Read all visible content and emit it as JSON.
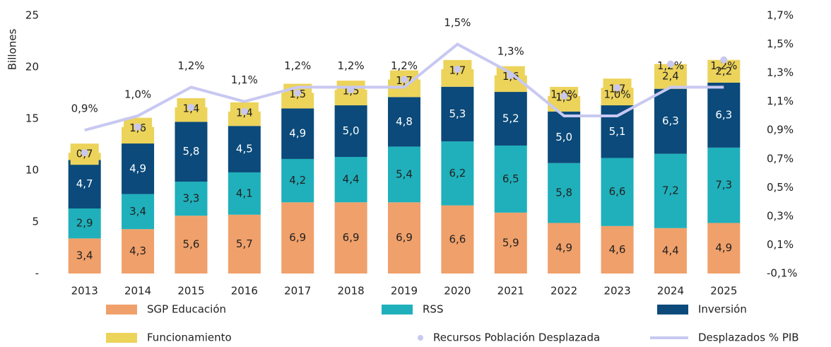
{
  "chart_data": {
    "type": "bar",
    "stacked": true,
    "y_label": "Billones",
    "categories": [
      "2013",
      "2014",
      "2015",
      "2016",
      "2017",
      "2018",
      "2019",
      "2020",
      "2021",
      "2022",
      "2023",
      "2024",
      "2025"
    ],
    "ylim": [
      0,
      25
    ],
    "yticks": [
      {
        "value": 0,
        "label": "-"
      },
      5,
      10,
      15,
      20,
      25
    ],
    "y2lim": [
      -0.1,
      1.7
    ],
    "y2ticks": [
      {
        "value": -0.1,
        "label": "-0,1%"
      },
      {
        "value": 0.1,
        "label": "0,1%"
      },
      {
        "value": 0.3,
        "label": "0,3%"
      },
      {
        "value": 0.5,
        "label": "0,5%"
      },
      {
        "value": 0.7,
        "label": "0,7%"
      },
      {
        "value": 0.9,
        "label": "0,9%"
      },
      {
        "value": 1.1,
        "label": "1,1%"
      },
      {
        "value": 1.3,
        "label": "1,3%"
      },
      {
        "value": 1.5,
        "label": "1,5%"
      },
      {
        "value": 1.7,
        "label": "1,7%"
      }
    ],
    "series": [
      {
        "name": "SGP Educación",
        "type": "bar",
        "color": "#f0a06a",
        "values": [
          3.4,
          4.3,
          5.6,
          5.7,
          6.9,
          6.9,
          6.9,
          6.6,
          5.9,
          4.9,
          4.6,
          4.4,
          4.9
        ],
        "value_labels": [
          "3,4",
          "4,3",
          "5,6",
          "5,7",
          "6,9",
          "6,9",
          "6,9",
          "6,6",
          "5,9",
          "4,9",
          "4,6",
          "4,4",
          "4,9"
        ]
      },
      {
        "name": "RSS",
        "type": "bar",
        "color": "#1fb0bb",
        "values": [
          2.9,
          3.4,
          3.3,
          4.1,
          4.2,
          4.4,
          5.4,
          6.2,
          6.5,
          5.8,
          6.6,
          7.2,
          7.3
        ],
        "value_labels": [
          "2,9",
          "3,4",
          "3,3",
          "4,1",
          "4,2",
          "4,4",
          "5,4",
          "6,2",
          "6,5",
          "5,8",
          "6,6",
          "7,2",
          "7,3"
        ]
      },
      {
        "name": "Inversión",
        "type": "bar",
        "color": "#0b4a7a",
        "values": [
          4.7,
          4.9,
          5.8,
          4.5,
          4.9,
          5.0,
          4.8,
          5.3,
          5.2,
          5.0,
          5.1,
          6.3,
          6.3
        ],
        "value_labels": [
          "4,7",
          "4,9",
          "5,8",
          "4,5",
          "4,9",
          "5,0",
          "4,8",
          "5,3",
          "5,2",
          "5,0",
          "5,1",
          "6,3",
          "6,3"
        ]
      },
      {
        "name": "Funcionamiento",
        "type": "bar",
        "color": "#ecd35a",
        "values": [
          0.7,
          1.6,
          1.4,
          1.4,
          1.5,
          1.5,
          1.7,
          1.7,
          1.6,
          1.5,
          1.7,
          2.4,
          2.2
        ],
        "value_labels": [
          "0,7",
          "1,6",
          "1,4",
          "1,4",
          "1,5",
          "1,5",
          "1,7",
          "1,7",
          "1,6",
          "1,5",
          "1,7",
          "2,4",
          "2,2"
        ]
      },
      {
        "name": "Recursos Población Desplazada",
        "type": "scatter",
        "color": "#c8c8f0",
        "values": [
          11.7,
          14.2,
          16.1,
          15.7,
          17.5,
          17.8,
          18.8,
          19.8,
          19.2,
          17.2,
          18.0,
          20.3,
          20.7
        ]
      },
      {
        "name": "Desplazados % PIB",
        "type": "line",
        "axis": "y2",
        "color": "#c8c8f2",
        "values": [
          0.9,
          1.0,
          1.2,
          1.1,
          1.2,
          1.2,
          1.2,
          1.5,
          1.3,
          1.0,
          1.0,
          1.2,
          1.2
        ],
        "value_labels": [
          "0,9%",
          "1,0%",
          "1,2%",
          "1,1%",
          "1,2%",
          "1,2%",
          "1,2%",
          "1,5%",
          "1,3%",
          "1,0%",
          "1,0%",
          "1,2%",
          "1,2%"
        ]
      }
    ]
  }
}
